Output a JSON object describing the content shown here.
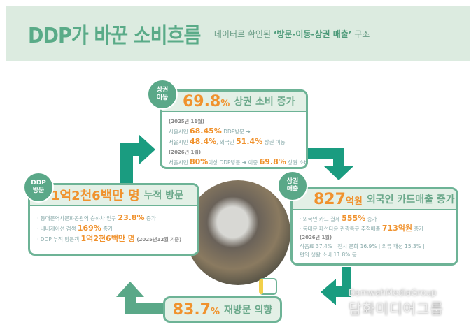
{
  "header": {
    "title": "DDP가 바꾼 소비흐름",
    "subtitle_pre": "데이터로 확인된 ",
    "subtitle_bold": "‘방문-이동-상권 매출’",
    "subtitle_post": " 구조"
  },
  "colors": {
    "accent": "#f0922e",
    "green": "#5aab88",
    "arrow": "#1a9c80",
    "header_bg": "#dcebe0"
  },
  "mobility": {
    "badge": "상권\n이동",
    "big": "69.8",
    "unit": "%",
    "headline": "상권 소비 증가",
    "date1": "(2025년 11월)",
    "l1a": "서울시민 ",
    "l1b": "68.45%",
    "l1c": " DDP방문 ➜",
    "l2a": "서울시민 ",
    "l2b": "48.4%",
    "l2c": ", 외국인 ",
    "l2d": "51.4%",
    "l2e": " 상권 이동",
    "date2": "(2026년 1월)",
    "l3a": "서울시민 ",
    "l3b": "80%",
    "l3c": "이상 DDP방문 ➜ 이중 ",
    "l3d": "69.8%",
    "l3e": " 상권 소비"
  },
  "visit": {
    "badge": "DDP\n방문",
    "big": "1억2천6백만 명",
    "headline": "누적 방문",
    "l1a": "· 동대문역사문화공원역 승하차 인구 ",
    "l1b": "23.8%",
    "l1c": " 증가",
    "l2a": "· 내비게이션 검색 ",
    "l2b": "169%",
    "l2c": " 증가",
    "l3a": "· DDP 누적 방문객 ",
    "l3b": "1억2천6백만 명",
    "l3c": " (2025년12월 기준)"
  },
  "sales": {
    "badge": "상권\n매출",
    "big": "827",
    "unit": "억원",
    "headline": "외국인 카드매출 증가",
    "l1a": "· 외국인 카드 결제 ",
    "l1b": "555%",
    "l1c": " 증가",
    "l2a": "· 동대문 패션타운 관광특구 추정매출 ",
    "l2b": "713억원",
    "l2c": " 증가",
    "date": "(2026년 1월)",
    "l3": "식음료 37.4% | 전시 문화 16.9% | 의류 패션 15.3% |",
    "l4": "편의 생활 소비 11.8% 등"
  },
  "revisit": {
    "big": "83.7",
    "unit": "%",
    "headline": "재방문 의향"
  },
  "watermark": {
    "en": "DamwahMediaGroup",
    "ko": "담화미디어그룹"
  }
}
